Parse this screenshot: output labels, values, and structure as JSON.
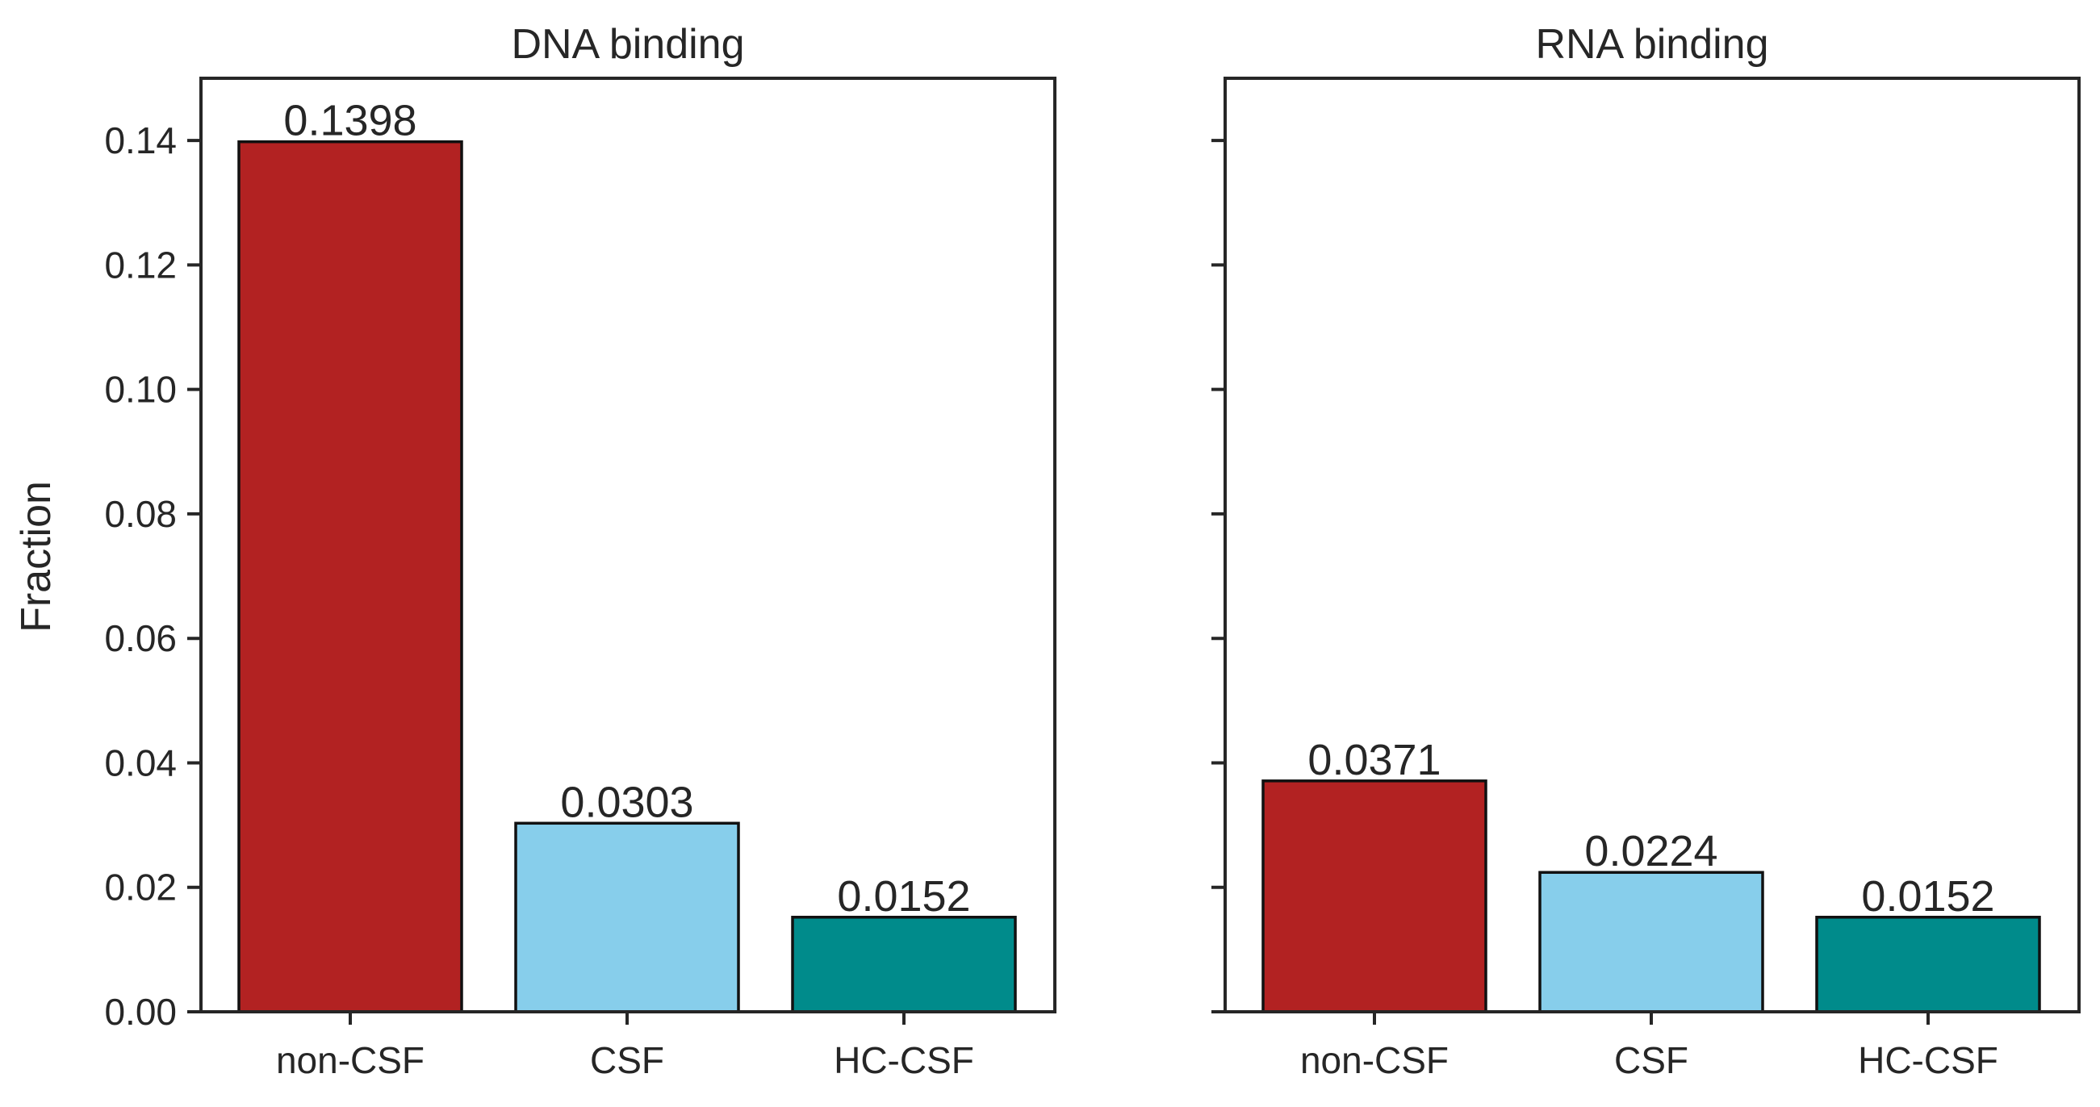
{
  "chart_data": {
    "type": "bar",
    "ylabel": "Fraction",
    "ylim": [
      0,
      0.15
    ],
    "yticks": [
      "0.00",
      "0.02",
      "0.04",
      "0.06",
      "0.08",
      "0.10",
      "0.12",
      "0.14"
    ],
    "categories": [
      "non-CSF",
      "CSF",
      "HC-CSF"
    ],
    "colors": [
      "#B22222",
      "#87CEEB",
      "#008B8B"
    ],
    "shared_y": true,
    "grid": false,
    "panels": [
      {
        "title": "DNA binding",
        "values": [
          0.1398,
          0.0303,
          0.0152
        ],
        "value_labels": [
          "0.1398",
          "0.0303",
          "0.0152"
        ]
      },
      {
        "title": "RNA binding",
        "values": [
          0.0371,
          0.0224,
          0.0152
        ],
        "value_labels": [
          "0.0371",
          "0.0224",
          "0.0152"
        ]
      }
    ]
  }
}
